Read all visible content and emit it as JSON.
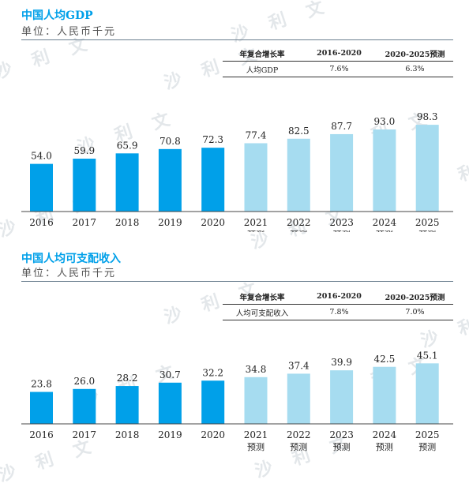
{
  "watermark": "沙 利 文",
  "chart_data": [
    {
      "type": "bar",
      "title": "中国人均GDP",
      "unit": "单位：人民币千元",
      "categories": [
        "2016",
        "2017",
        "2018",
        "2019",
        "2020",
        "2021",
        "2022",
        "2023",
        "2024",
        "2025"
      ],
      "sublabels": [
        "",
        "",
        "",
        "",
        "",
        "预测",
        "预测",
        "预测",
        "预测",
        "预测"
      ],
      "values": [
        54.0,
        59.9,
        65.9,
        70.8,
        72.3,
        77.4,
        82.5,
        87.7,
        93.0,
        98.3
      ],
      "colors": {
        "actual": "#00a0e9",
        "forecast": "#a6dcf0"
      },
      "cagr_table": {
        "header": [
          "年复合增长率",
          "2016-2020",
          "2020-2025预测"
        ],
        "row": [
          "人均GDP",
          "7.6%",
          "6.3%"
        ]
      }
    },
    {
      "type": "bar",
      "title": "中国人均可支配收入",
      "unit": "单位：人民币千元",
      "categories": [
        "2016",
        "2017",
        "2018",
        "2019",
        "2020",
        "2021",
        "2022",
        "2023",
        "2024",
        "2025"
      ],
      "sublabels": [
        "",
        "",
        "",
        "",
        "",
        "预测",
        "预测",
        "预测",
        "预测",
        "预测"
      ],
      "values": [
        23.8,
        26.0,
        28.2,
        30.7,
        32.2,
        34.8,
        37.4,
        39.9,
        42.5,
        45.1
      ],
      "colors": {
        "actual": "#00a0e9",
        "forecast": "#a6dcf0"
      },
      "cagr_table": {
        "header": [
          "年复合增长率",
          "2016-2020",
          "2020-2025预测"
        ],
        "row": [
          "人均可支配收入",
          "7.8%",
          "7.0%"
        ]
      }
    }
  ]
}
